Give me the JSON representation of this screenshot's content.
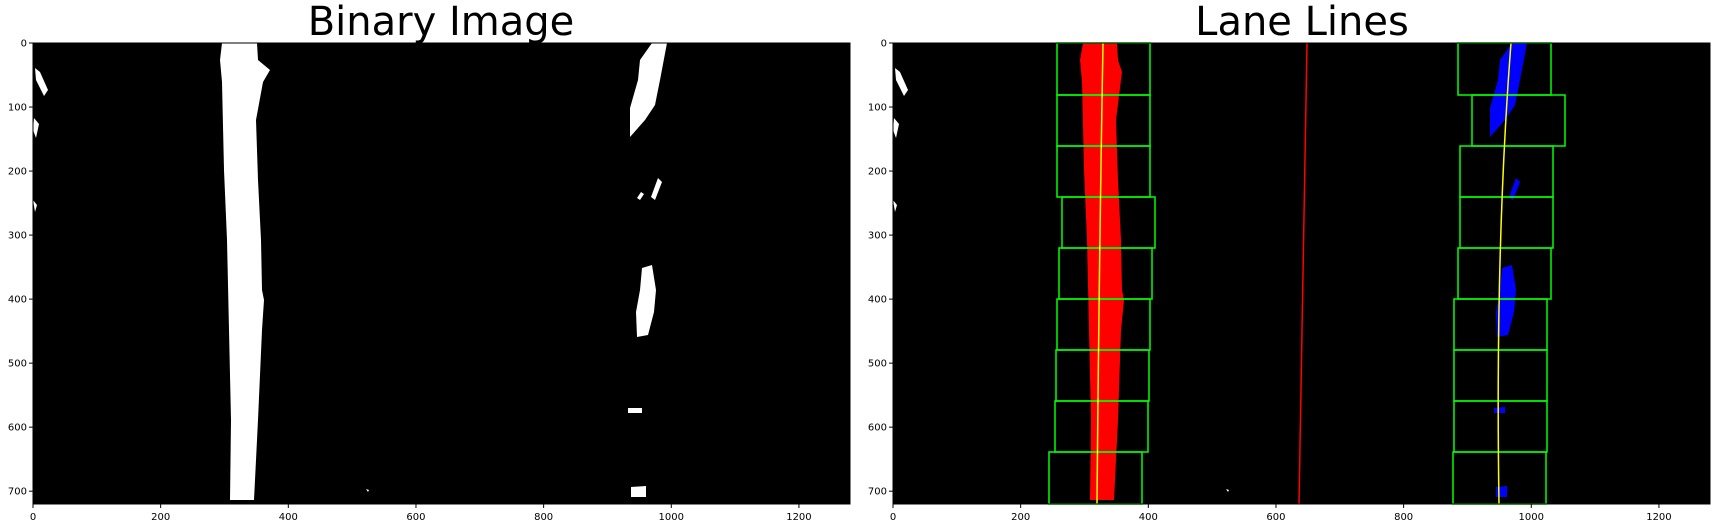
{
  "panels": [
    {
      "id": "binary",
      "title": "Binary Image",
      "x_ticks": [
        "0",
        "200",
        "400",
        "600",
        "800",
        "1000",
        "1200"
      ],
      "y_ticks": [
        "0",
        "100",
        "200",
        "300",
        "400",
        "500",
        "600",
        "700"
      ],
      "background": "#000000",
      "pixel_color": "#ffffff"
    },
    {
      "id": "lanes",
      "title": "Lane Lines",
      "x_ticks": [
        "0",
        "200",
        "400",
        "600",
        "800",
        "1000",
        "1200"
      ],
      "y_ticks": [
        "0",
        "100",
        "200",
        "300",
        "400",
        "500",
        "600",
        "700"
      ],
      "background": "#000000",
      "left_lane_color": "#ff0000",
      "right_lane_color": "#0000ff",
      "window_color": "#00ff00",
      "fit_line_color": "#ffff00",
      "center_line_color": "#ff0000"
    }
  ],
  "image_extent": {
    "x": [
      0,
      1280
    ],
    "y": [
      720,
      0
    ]
  }
}
